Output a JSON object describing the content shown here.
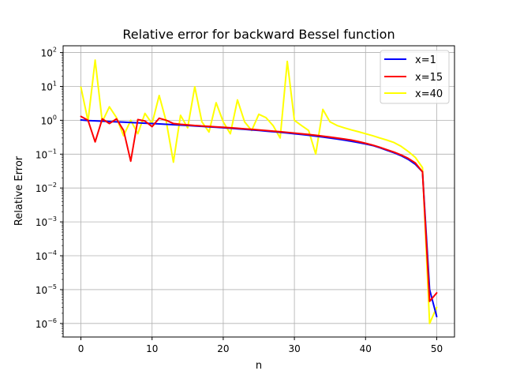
{
  "chart_data": {
    "type": "line",
    "title": "Relative error for backward Bessel function",
    "xlabel": "n",
    "ylabel": "Relative Error",
    "xlim": [
      -2.5,
      52.5
    ],
    "ylim_exponents": [
      -6.4,
      2.2
    ],
    "yscale": "log",
    "grid": true,
    "legend_position": "upper right",
    "x_ticks": [
      0,
      10,
      20,
      30,
      40,
      50
    ],
    "y_tick_labels": [
      {
        "base": "10",
        "exp": "2",
        "pow": 2
      },
      {
        "base": "10",
        "exp": "1",
        "pow": 1
      },
      {
        "base": "10",
        "exp": "0",
        "pow": 0
      },
      {
        "base": "10",
        "exp": "−1",
        "pow": -1
      },
      {
        "base": "10",
        "exp": "−2",
        "pow": -2
      },
      {
        "base": "10",
        "exp": "−3",
        "pow": -3
      },
      {
        "base": "10",
        "exp": "−4",
        "pow": -4
      },
      {
        "base": "10",
        "exp": "−5",
        "pow": -5
      },
      {
        "base": "10",
        "exp": "−6",
        "pow": -6
      }
    ],
    "x": [
      0,
      1,
      2,
      3,
      4,
      5,
      6,
      7,
      8,
      9,
      10,
      11,
      12,
      13,
      14,
      15,
      16,
      17,
      18,
      19,
      20,
      21,
      22,
      23,
      24,
      25,
      26,
      27,
      28,
      29,
      30,
      31,
      32,
      33,
      34,
      35,
      36,
      37,
      38,
      39,
      40,
      41,
      42,
      43,
      44,
      45,
      46,
      47,
      48,
      49,
      50
    ],
    "series": [
      {
        "name": "x=1",
        "color": "#0000ff",
        "values": [
          1.02,
          0.98,
          0.96,
          0.94,
          0.92,
          0.9,
          0.88,
          0.86,
          0.84,
          0.82,
          0.8,
          0.78,
          0.76,
          0.74,
          0.72,
          0.7,
          0.68,
          0.66,
          0.64,
          0.62,
          0.6,
          0.58,
          0.56,
          0.54,
          0.52,
          0.5,
          0.48,
          0.46,
          0.44,
          0.42,
          0.4,
          0.38,
          0.36,
          0.34,
          0.32,
          0.3,
          0.28,
          0.26,
          0.24,
          0.22,
          0.2,
          0.18,
          0.155,
          0.13,
          0.11,
          0.09,
          0.07,
          0.05,
          0.03,
          1e-05,
          1.6e-06
        ]
      },
      {
        "name": "x=15",
        "color": "#ff0000",
        "values": [
          1.3,
          1.0,
          0.23,
          1.1,
          0.8,
          1.1,
          0.5,
          0.062,
          1.05,
          0.95,
          0.65,
          1.15,
          1.0,
          0.8,
          0.76,
          0.73,
          0.7,
          0.68,
          0.66,
          0.64,
          0.62,
          0.6,
          0.58,
          0.56,
          0.54,
          0.52,
          0.5,
          0.48,
          0.46,
          0.44,
          0.42,
          0.4,
          0.38,
          0.36,
          0.34,
          0.32,
          0.3,
          0.28,
          0.26,
          0.235,
          0.21,
          0.185,
          0.16,
          0.135,
          0.115,
          0.095,
          0.075,
          0.055,
          0.03,
          4.5e-06,
          8e-06
        ]
      },
      {
        "name": "x=40",
        "color": "#ffff00",
        "values": [
          9.5,
          0.95,
          60,
          0.9,
          2.5,
          1.2,
          0.35,
          1.0,
          0.4,
          1.6,
          0.8,
          5.4,
          0.9,
          0.058,
          1.4,
          0.6,
          9.8,
          0.9,
          0.45,
          3.3,
          0.9,
          0.4,
          4.0,
          0.9,
          0.5,
          1.5,
          1.2,
          0.7,
          0.3,
          55,
          1.0,
          0.7,
          0.5,
          0.1,
          2.1,
          0.9,
          0.7,
          0.6,
          0.52,
          0.46,
          0.4,
          0.35,
          0.3,
          0.26,
          0.22,
          0.17,
          0.12,
          0.08,
          0.04,
          1e-06,
          3e-06
        ]
      }
    ]
  }
}
